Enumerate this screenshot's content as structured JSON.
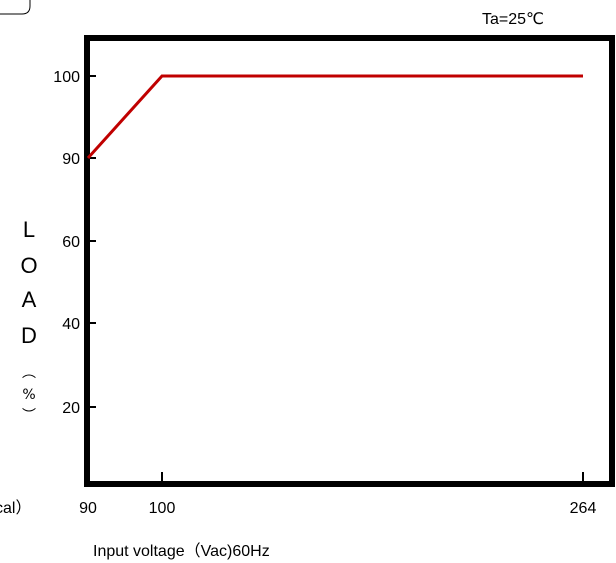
{
  "chart_data": {
    "type": "line",
    "annotation": "Ta=25℃",
    "xlabel": "Input voltage（Vac)60Hz",
    "xlabel_left_fragment": "cal）",
    "ylabel_chars": [
      "L",
      "O",
      "A",
      "D",
      "︵",
      "%",
      "︶"
    ],
    "x_ticks": [
      {
        "value": 90,
        "label": "90"
      },
      {
        "value": 100,
        "label": "100"
      },
      {
        "value": 264,
        "label": "264"
      }
    ],
    "y_ticks": [
      {
        "value": 20,
        "label": "20"
      },
      {
        "value": 40,
        "label": "40"
      },
      {
        "value": 60,
        "label": "60"
      },
      {
        "value": 90,
        "label": "90"
      },
      {
        "value": 100,
        "label": "100"
      }
    ],
    "series": [
      {
        "color": "#c00000",
        "points": [
          {
            "x": 90,
            "y": 90
          },
          {
            "x": 100,
            "y": 100
          },
          {
            "x": 264,
            "y": 100
          }
        ]
      }
    ]
  }
}
